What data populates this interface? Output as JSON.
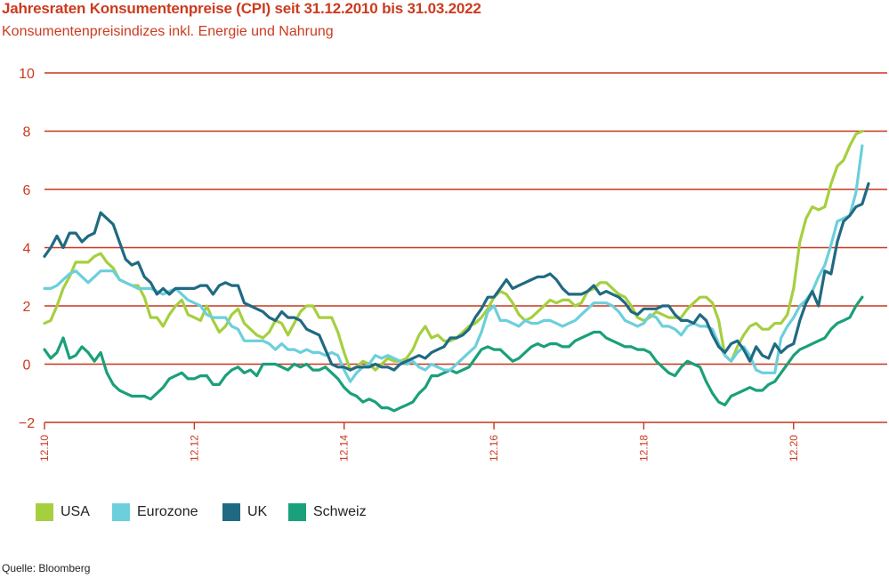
{
  "header": {
    "title": "Jahresraten Konsumentenpreise (CPI) seit 31.12.2010 bis 31.03.2022",
    "subtitle": "Konsumentenpreisindizes inkl. Energie und Nahrung"
  },
  "footer": {
    "source": "Quelle: Bloomberg"
  },
  "colors": {
    "accent": "#cc3b1f",
    "grid": "#c8361c",
    "usa": "#a6cf3f",
    "eurozone": "#6ccfdc",
    "uk": "#1f6a82",
    "schweiz": "#1aa07a"
  },
  "chart_data": {
    "type": "line",
    "title": "Jahresraten Konsumentenpreise (CPI) seit 31.12.2010 bis 31.03.2022",
    "subtitle": "Konsumentenpreisindizes inkl. Energie und Nahrung",
    "xlabel": "",
    "ylabel": "",
    "ylim": [
      -2,
      10
    ],
    "yticks": [
      "−2",
      "0",
      "2",
      "4",
      "6",
      "8",
      "10"
    ],
    "xticks": [
      "12.10",
      "12.12",
      "12.14",
      "12.16",
      "12.18",
      "12.20"
    ],
    "xlim_months": [
      0,
      135
    ],
    "grid": true,
    "legend_position": "bottom-left",
    "series": [
      {
        "name": "USA",
        "color": "#a6cf3f",
        "values": [
          1.4,
          1.5,
          2.0,
          2.6,
          3.0,
          3.5,
          3.5,
          3.5,
          3.7,
          3.8,
          3.5,
          3.3,
          2.9,
          2.8,
          2.7,
          2.7,
          2.3,
          1.6,
          1.6,
          1.3,
          1.7,
          2.0,
          2.2,
          1.7,
          1.6,
          1.5,
          2.0,
          1.5,
          1.1,
          1.3,
          1.7,
          1.9,
          1.4,
          1.2,
          1.0,
          0.9,
          1.1,
          1.5,
          1.4,
          1.0,
          1.4,
          1.8,
          2.0,
          2.0,
          1.6,
          1.6,
          1.6,
          1.1,
          0.4,
          -0.2,
          -0.1,
          0.1,
          0.0,
          -0.2,
          0.0,
          0.2,
          0.1,
          0.1,
          0.2,
          0.5,
          1.0,
          1.3,
          0.9,
          1.0,
          0.8,
          0.8,
          0.9,
          1.1,
          1.3,
          1.4,
          1.6,
          1.9,
          2.3,
          2.5,
          2.4,
          2.1,
          1.7,
          1.5,
          1.6,
          1.8,
          2.0,
          2.2,
          2.1,
          2.2,
          2.2,
          2.0,
          2.1,
          2.5,
          2.6,
          2.8,
          2.8,
          2.6,
          2.4,
          2.3,
          2.0,
          1.6,
          1.5,
          1.6,
          1.8,
          1.7,
          1.6,
          1.6,
          1.6,
          1.9,
          2.1,
          2.3,
          2.3,
          2.1,
          1.5,
          0.3,
          0.1,
          0.6,
          1.0,
          1.3,
          1.4,
          1.2,
          1.2,
          1.4,
          1.4,
          1.7,
          2.6,
          4.2,
          5.0,
          5.4,
          5.3,
          5.4,
          6.2,
          6.8,
          7.0,
          7.5,
          7.9,
          8.0
        ],
        "x_start_month": 0
      },
      {
        "name": "Eurozone",
        "color": "#6ccfdc",
        "values": [
          2.6,
          2.6,
          2.7,
          2.9,
          3.1,
          3.2,
          3.0,
          2.8,
          3.0,
          3.2,
          3.2,
          3.2,
          2.9,
          2.8,
          2.7,
          2.6,
          2.6,
          2.6,
          2.5,
          2.4,
          2.5,
          2.6,
          2.4,
          2.2,
          2.1,
          2.0,
          1.7,
          1.6,
          1.6,
          1.6,
          1.3,
          1.2,
          0.8,
          0.8,
          0.8,
          0.8,
          0.7,
          0.5,
          0.7,
          0.5,
          0.5,
          0.4,
          0.5,
          0.4,
          0.4,
          0.3,
          0.4,
          0.3,
          -0.2,
          -0.6,
          -0.3,
          -0.1,
          0.0,
          0.3,
          0.2,
          0.3,
          0.2,
          0.1,
          0.0,
          0.1,
          -0.1,
          -0.2,
          0.0,
          -0.1,
          -0.2,
          -0.2,
          0.0,
          0.2,
          0.4,
          0.6,
          1.1,
          1.8,
          2.0,
          1.5,
          1.5,
          1.4,
          1.3,
          1.5,
          1.4,
          1.4,
          1.5,
          1.5,
          1.4,
          1.3,
          1.4,
          1.5,
          1.7,
          1.9,
          2.1,
          2.1,
          2.1,
          2.0,
          1.8,
          1.5,
          1.4,
          1.3,
          1.4,
          1.7,
          1.6,
          1.3,
          1.3,
          1.2,
          1.0,
          1.3,
          1.4,
          1.3,
          1.3,
          1.2,
          0.7,
          0.3,
          0.1,
          0.4,
          0.6,
          0.3,
          -0.2,
          -0.3,
          -0.3,
          -0.3,
          0.9,
          1.3,
          1.6,
          2.0,
          2.2,
          2.5,
          3.0,
          3.4,
          4.1,
          4.9,
          5.0,
          5.1,
          5.9,
          7.5
        ],
        "x_start_month": 0
      },
      {
        "name": "UK",
        "color": "#1f6a82",
        "values": [
          3.7,
          4.0,
          4.4,
          4.0,
          4.5,
          4.5,
          4.2,
          4.4,
          4.5,
          5.2,
          5.0,
          4.8,
          4.2,
          3.6,
          3.4,
          3.5,
          3.0,
          2.8,
          2.4,
          2.6,
          2.4,
          2.6,
          2.6,
          2.6,
          2.6,
          2.7,
          2.7,
          2.4,
          2.7,
          2.8,
          2.7,
          2.7,
          2.1,
          2.0,
          1.9,
          1.8,
          1.6,
          1.5,
          1.8,
          1.6,
          1.6,
          1.5,
          1.2,
          1.1,
          1.0,
          0.5,
          0.0,
          -0.1,
          -0.1,
          -0.2,
          -0.1,
          -0.1,
          -0.1,
          0.0,
          -0.1,
          -0.1,
          -0.2,
          0.0,
          0.1,
          0.2,
          0.3,
          0.2,
          0.4,
          0.5,
          0.6,
          0.9,
          0.9,
          1.0,
          1.2,
          1.6,
          1.9,
          2.3,
          2.3,
          2.6,
          2.9,
          2.6,
          2.7,
          2.8,
          2.9,
          3.0,
          3.0,
          3.1,
          2.9,
          2.6,
          2.4,
          2.4,
          2.4,
          2.5,
          2.7,
          2.4,
          2.5,
          2.4,
          2.3,
          2.1,
          1.8,
          1.7,
          1.9,
          1.9,
          1.9,
          2.0,
          2.0,
          1.7,
          1.5,
          1.5,
          1.4,
          1.7,
          1.5,
          1.0,
          0.6,
          0.4,
          0.7,
          0.8,
          0.5,
          0.1,
          0.6,
          0.3,
          0.2,
          0.7,
          0.4,
          0.6,
          0.7,
          1.5,
          2.1,
          2.5,
          2.0,
          3.2,
          3.1,
          4.2,
          4.9,
          5.1,
          5.4,
          5.5,
          6.2
        ],
        "x_start_month": 0
      },
      {
        "name": "Schweiz",
        "color": "#1aa07a",
        "values": [
          0.5,
          0.2,
          0.4,
          0.9,
          0.2,
          0.3,
          0.6,
          0.4,
          0.1,
          0.4,
          -0.3,
          -0.7,
          -0.9,
          -1.0,
          -1.1,
          -1.1,
          -1.1,
          -1.2,
          -1.0,
          -0.8,
          -0.5,
          -0.4,
          -0.3,
          -0.5,
          -0.5,
          -0.4,
          -0.4,
          -0.7,
          -0.7,
          -0.4,
          -0.2,
          -0.1,
          -0.3,
          -0.2,
          -0.4,
          0.0,
          0.0,
          0.0,
          -0.1,
          -0.2,
          0.0,
          -0.1,
          0.0,
          -0.2,
          -0.2,
          -0.1,
          -0.3,
          -0.5,
          -0.8,
          -1.0,
          -1.1,
          -1.3,
          -1.2,
          -1.3,
          -1.5,
          -1.5,
          -1.6,
          -1.5,
          -1.4,
          -1.3,
          -1.0,
          -0.8,
          -0.4,
          -0.4,
          -0.3,
          -0.2,
          -0.3,
          -0.2,
          -0.1,
          0.2,
          0.5,
          0.6,
          0.5,
          0.5,
          0.3,
          0.1,
          0.2,
          0.4,
          0.6,
          0.7,
          0.6,
          0.7,
          0.7,
          0.6,
          0.6,
          0.8,
          0.9,
          1.0,
          1.1,
          1.1,
          0.9,
          0.8,
          0.7,
          0.6,
          0.6,
          0.5,
          0.5,
          0.4,
          0.1,
          -0.1,
          -0.3,
          -0.4,
          -0.1,
          0.1,
          0.0,
          -0.1,
          -0.6,
          -1.0,
          -1.3,
          -1.4,
          -1.1,
          -1.0,
          -0.9,
          -0.8,
          -0.9,
          -0.9,
          -0.7,
          -0.6,
          -0.3,
          0.0,
          0.3,
          0.5,
          0.6,
          0.7,
          0.8,
          0.9,
          1.2,
          1.4,
          1.5,
          1.6,
          2.0,
          2.3
        ],
        "x_start_month": 0
      }
    ]
  }
}
